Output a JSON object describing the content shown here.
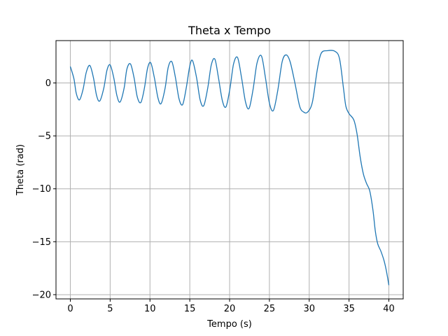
{
  "chart_data": {
    "type": "line",
    "title": "Theta x Tempo",
    "xlabel": "Tempo (s)",
    "ylabel": "Theta (rad)",
    "xlim": [
      -1.8,
      41.8
    ],
    "ylim": [
      -20.4,
      4.0
    ],
    "xticks": [
      0,
      5,
      10,
      15,
      20,
      25,
      30,
      35,
      40
    ],
    "yticks": [
      0,
      -5,
      -10,
      -15,
      -20
    ],
    "xtick_labels": [
      "0",
      "5",
      "10",
      "15",
      "20",
      "25",
      "30",
      "35",
      "40"
    ],
    "ytick_labels": [
      "0",
      "−5",
      "−10",
      "−15",
      "−20"
    ],
    "grid": true,
    "series": [
      {
        "color": "#1f77b4",
        "points": [
          [
            0.0,
            1.55
          ],
          [
            0.45,
            0.4
          ],
          [
            0.75,
            -1.0
          ],
          [
            1.15,
            -1.6
          ],
          [
            1.6,
            -0.6
          ],
          [
            2.0,
            1.0
          ],
          [
            2.45,
            1.65
          ],
          [
            2.9,
            0.5
          ],
          [
            3.3,
            -1.2
          ],
          [
            3.7,
            -1.7
          ],
          [
            4.2,
            -0.5
          ],
          [
            4.6,
            1.2
          ],
          [
            5.0,
            1.7
          ],
          [
            5.45,
            0.5
          ],
          [
            5.85,
            -1.2
          ],
          [
            6.25,
            -1.8
          ],
          [
            6.75,
            -0.5
          ],
          [
            7.1,
            1.3
          ],
          [
            7.55,
            1.8
          ],
          [
            8.0,
            0.5
          ],
          [
            8.4,
            -1.3
          ],
          [
            8.85,
            -1.85
          ],
          [
            9.3,
            -0.5
          ],
          [
            9.7,
            1.4
          ],
          [
            10.1,
            1.9
          ],
          [
            10.55,
            0.5
          ],
          [
            11.0,
            -1.4
          ],
          [
            11.4,
            -1.95
          ],
          [
            11.9,
            -0.5
          ],
          [
            12.3,
            1.5
          ],
          [
            12.75,
            2.0
          ],
          [
            13.2,
            0.5
          ],
          [
            13.65,
            -1.5
          ],
          [
            14.1,
            -2.05
          ],
          [
            14.55,
            -0.5
          ],
          [
            15.0,
            1.6
          ],
          [
            15.35,
            2.1
          ],
          [
            15.85,
            0.5
          ],
          [
            16.3,
            -1.6
          ],
          [
            16.75,
            -2.15
          ],
          [
            17.25,
            -0.5
          ],
          [
            17.7,
            1.7
          ],
          [
            18.15,
            2.25
          ],
          [
            18.6,
            0.5
          ],
          [
            19.1,
            -1.7
          ],
          [
            19.55,
            -2.25
          ],
          [
            20.05,
            -0.5
          ],
          [
            20.5,
            1.8
          ],
          [
            21.0,
            2.4
          ],
          [
            21.5,
            0.5
          ],
          [
            22.0,
            -1.8
          ],
          [
            22.45,
            -2.4
          ],
          [
            22.95,
            -0.6
          ],
          [
            23.45,
            1.9
          ],
          [
            24.0,
            2.55
          ],
          [
            24.5,
            0.5
          ],
          [
            25.0,
            -1.9
          ],
          [
            25.5,
            -2.6
          ],
          [
            26.05,
            -0.7
          ],
          [
            26.6,
            2.0
          ],
          [
            27.1,
            2.65
          ],
          [
            27.6,
            2.0
          ],
          [
            28.2,
            0.0
          ],
          [
            28.8,
            -2.2
          ],
          [
            29.3,
            -2.75
          ],
          [
            29.8,
            -2.75
          ],
          [
            30.4,
            -1.8
          ],
          [
            31.0,
            1.2
          ],
          [
            31.5,
            2.8
          ],
          [
            32.3,
            3.05
          ],
          [
            33.2,
            3.0
          ],
          [
            33.8,
            2.3
          ],
          [
            34.3,
            -0.5
          ],
          [
            34.6,
            -2.2
          ],
          [
            35.0,
            -2.9
          ],
          [
            35.6,
            -3.5
          ],
          [
            36.0,
            -4.8
          ],
          [
            36.4,
            -7.0
          ],
          [
            36.8,
            -8.6
          ],
          [
            37.2,
            -9.5
          ],
          [
            37.6,
            -10.2
          ],
          [
            38.0,
            -12.0
          ],
          [
            38.3,
            -14.0
          ],
          [
            38.6,
            -15.2
          ],
          [
            39.0,
            -15.9
          ],
          [
            39.4,
            -16.8
          ],
          [
            39.7,
            -17.8
          ],
          [
            40.0,
            -19.1
          ]
        ]
      }
    ]
  }
}
